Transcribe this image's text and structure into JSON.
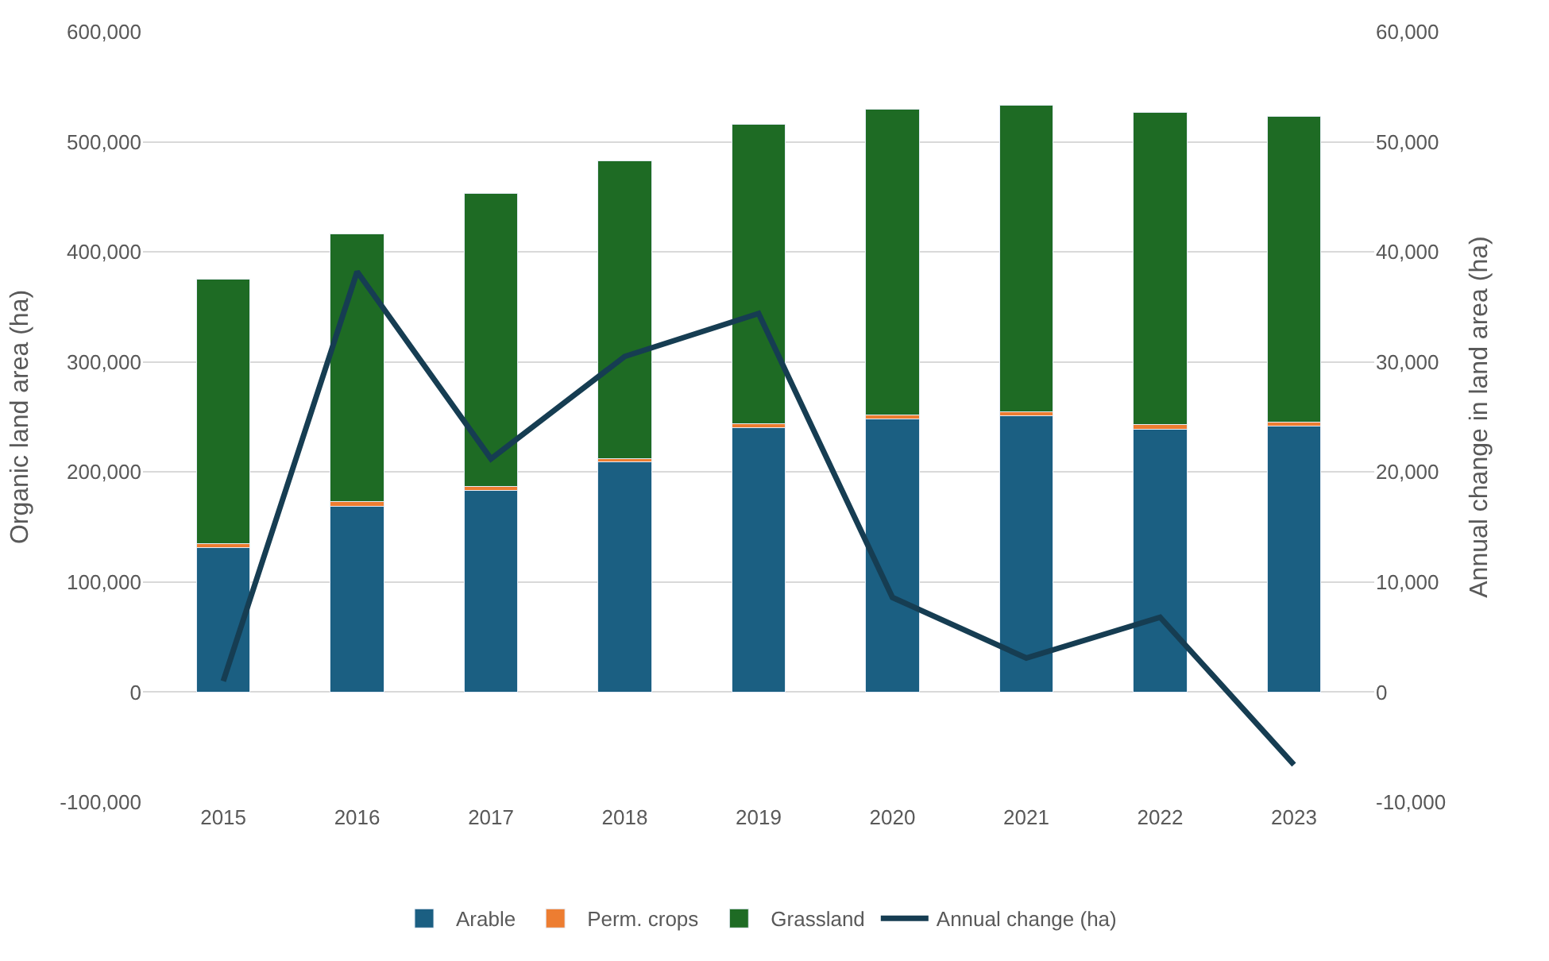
{
  "chart_data": {
    "type": "bar",
    "stacked": true,
    "categories": [
      "2015",
      "2016",
      "2017",
      "2018",
      "2019",
      "2020",
      "2021",
      "2022",
      "2023"
    ],
    "ylabel": "Organic land area (ha)",
    "y2label": "Annual change in land area (ha)",
    "series": [
      {
        "name": "Arable",
        "color": "#1b5f82",
        "values": [
          131000,
          169000,
          183000,
          209000,
          240000,
          248000,
          251000,
          239000,
          242000
        ]
      },
      {
        "name": "Perm. crops",
        "color": "#ed7d31",
        "values": [
          4000,
          4000,
          4000,
          3000,
          4000,
          4000,
          4000,
          4000,
          3000
        ]
      },
      {
        "name": "Grassland",
        "color": "#1e6b24",
        "values": [
          240000,
          243000,
          266000,
          271000,
          272000,
          278000,
          278000,
          284000,
          278000
        ]
      },
      {
        "name": "Annual change (ha)",
        "type": "line",
        "axis": "y2",
        "color": "#163d52",
        "values": [
          1000,
          38200,
          21200,
          30500,
          34400,
          8600,
          3100,
          6800,
          -6600
        ]
      }
    ],
    "ylim": [
      -100000,
      600000
    ],
    "yticks": [
      {
        "value": -100000,
        "label": "-100,000"
      },
      0,
      {
        "value": 100000,
        "label": "100,000"
      },
      {
        "value": 200000,
        "label": "200,000"
      },
      {
        "value": 300000,
        "label": "300,000"
      },
      {
        "value": 400000,
        "label": "400,000"
      },
      {
        "value": 500000,
        "label": "500,000"
      },
      {
        "value": 600000,
        "label": "600,000"
      }
    ],
    "y2lim": [
      -10000,
      60000
    ],
    "y2ticks": [
      {
        "value": -10000,
        "label": "-10,000"
      },
      0,
      {
        "value": 10000,
        "label": "10,000"
      },
      {
        "value": 20000,
        "label": "20,000"
      },
      {
        "value": 30000,
        "label": "30,000"
      },
      {
        "value": 40000,
        "label": "40,000"
      },
      {
        "value": 50000,
        "label": "50,000"
      },
      {
        "value": 60000,
        "label": "60,000"
      }
    ],
    "grid": "y",
    "legend": "bottom",
    "marker": "none",
    "line_style": "solid"
  }
}
